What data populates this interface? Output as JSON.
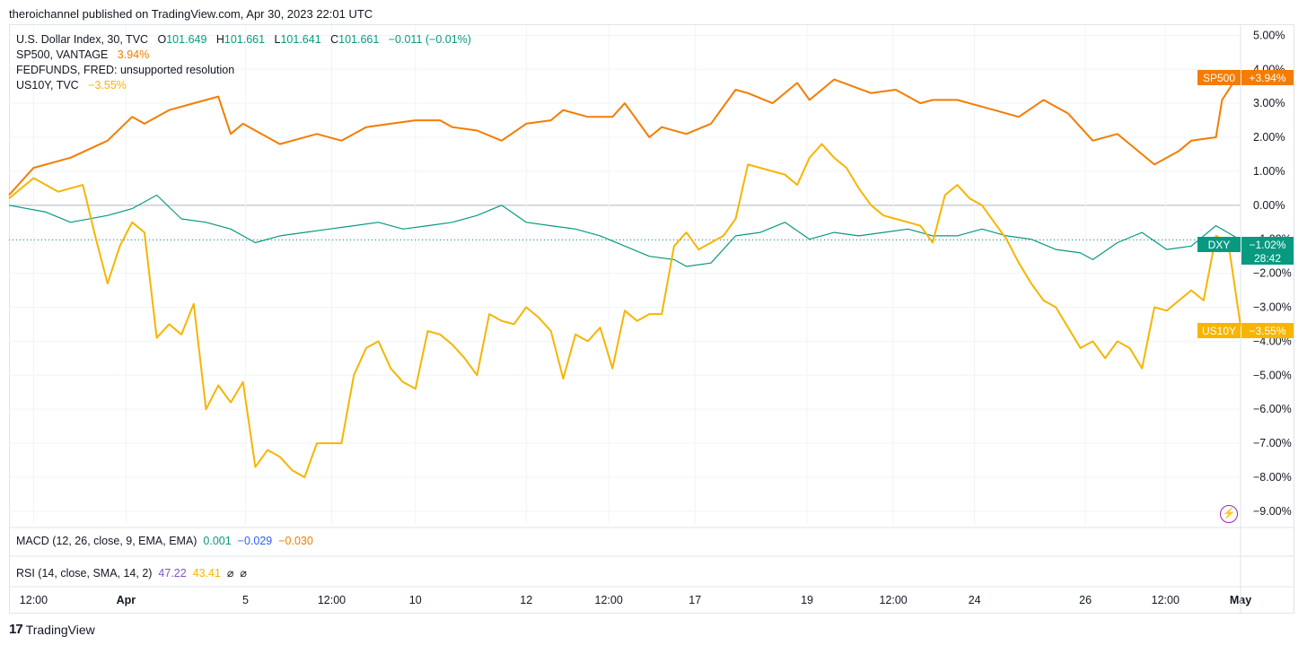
{
  "header": {
    "published": "theroichannel published on TradingView.com, Apr 30, 2023 22:01 UTC"
  },
  "legend": [
    {
      "label": "U.S. Dollar Index, 30, TVC",
      "o_key": "O",
      "o": "101.649",
      "h_key": "H",
      "h": "101.661",
      "l_key": "L",
      "l": "101.641",
      "c_key": "C",
      "c": "101.661",
      "chg": "−0.011 (−0.01%)",
      "color": "#089981"
    },
    {
      "label": "SP500, VANTAGE",
      "value": "3.94%",
      "color": "#f57c00"
    },
    {
      "label": "FEDFUNDS, FRED: unsupported resolution"
    },
    {
      "label": "US10Y, TVC",
      "value": "−3.55%",
      "color": "#f7b500"
    }
  ],
  "macd": {
    "label": "MACD (12, 26, close, 9, EMA, EMA)",
    "v1": "0.001",
    "v2": "−0.029",
    "v3": "−0.030",
    "c1": "#089981",
    "c2": "#2962ff",
    "c3": "#f57c00"
  },
  "rsi": {
    "label": "RSI (14, close, SMA, 14, 2)",
    "v1": "47.22",
    "v2": "43.41",
    "v3": "⌀",
    "v4": "⌀",
    "c1": "#7e57c2",
    "c2": "#f7b500"
  },
  "footer": {
    "brand": "TradingView",
    "logo_text": "17"
  },
  "tags": {
    "sp500": {
      "name": "SP500",
      "value": "+3.94%",
      "color": "#f57c00"
    },
    "dxy": {
      "name": "DXY",
      "value": "−1.02%",
      "countdown": "28:42",
      "color": "#089981"
    },
    "us10y": {
      "name": "US10Y",
      "value": "−3.55%",
      "color": "#f7b500"
    }
  },
  "chart_data": {
    "type": "line",
    "y_unit": "%",
    "ylim": [
      -9.4,
      5.3
    ],
    "y_ticks": [
      "5.00%",
      "4.00%",
      "3.00%",
      "2.00%",
      "1.00%",
      "0.00%",
      "−1.00%",
      "−2.00%",
      "−3.00%",
      "−4.00%",
      "−5.00%",
      "−6.00%",
      "−7.00%",
      "−8.00%",
      "−9.00%"
    ],
    "y_tick_values": [
      5,
      4,
      3,
      2,
      1,
      0,
      -1,
      -2,
      -3,
      -4,
      -5,
      -6,
      -7,
      -8,
      -9
    ],
    "x_ticks": [
      "12:00",
      "Apr",
      "5",
      "12:00",
      "10",
      "12",
      "12:00",
      "17",
      "19",
      "12:00",
      "24",
      "26",
      "12:00",
      "May"
    ],
    "x_tick_pos": [
      0.02,
      0.095,
      0.192,
      0.262,
      0.33,
      0.42,
      0.487,
      0.557,
      0.648,
      0.718,
      0.784,
      0.874,
      0.939,
      1.0
    ],
    "bold_ticks": [
      "Apr",
      "May"
    ],
    "x_range": [
      0,
      1
    ],
    "grid": true,
    "series": [
      {
        "name": "SP500",
        "color": "#f57c00",
        "x": [
          0,
          0.02,
          0.05,
          0.08,
          0.1,
          0.11,
          0.13,
          0.15,
          0.17,
          0.18,
          0.19,
          0.2,
          0.22,
          0.23,
          0.25,
          0.27,
          0.29,
          0.31,
          0.33,
          0.35,
          0.36,
          0.38,
          0.4,
          0.42,
          0.44,
          0.45,
          0.47,
          0.49,
          0.5,
          0.52,
          0.53,
          0.55,
          0.57,
          0.59,
          0.6,
          0.62,
          0.64,
          0.65,
          0.67,
          0.7,
          0.72,
          0.74,
          0.75,
          0.77,
          0.8,
          0.82,
          0.84,
          0.86,
          0.87,
          0.88,
          0.9,
          0.91,
          0.93,
          0.95,
          0.96,
          0.98,
          0.985,
          1.0
        ],
        "y": [
          0.3,
          1.1,
          1.4,
          1.9,
          2.6,
          2.4,
          2.8,
          3.0,
          3.2,
          2.1,
          2.4,
          2.2,
          1.8,
          1.9,
          2.1,
          1.9,
          2.3,
          2.4,
          2.5,
          2.5,
          2.3,
          2.2,
          1.9,
          2.4,
          2.5,
          2.8,
          2.6,
          2.6,
          3.0,
          2.0,
          2.3,
          2.1,
          2.4,
          3.4,
          3.3,
          3.0,
          3.6,
          3.1,
          3.7,
          3.3,
          3.4,
          3.0,
          3.1,
          3.1,
          2.8,
          2.6,
          3.1,
          2.7,
          2.3,
          1.9,
          2.1,
          1.8,
          1.2,
          1.6,
          1.9,
          2.0,
          3.1,
          3.94
        ]
      },
      {
        "name": "DXY",
        "color": "#089981",
        "x": [
          0,
          0.03,
          0.05,
          0.08,
          0.1,
          0.12,
          0.14,
          0.16,
          0.18,
          0.2,
          0.22,
          0.24,
          0.26,
          0.28,
          0.3,
          0.32,
          0.34,
          0.36,
          0.38,
          0.4,
          0.42,
          0.44,
          0.46,
          0.48,
          0.5,
          0.52,
          0.54,
          0.55,
          0.57,
          0.59,
          0.61,
          0.63,
          0.65,
          0.67,
          0.69,
          0.71,
          0.73,
          0.75,
          0.77,
          0.79,
          0.81,
          0.83,
          0.85,
          0.87,
          0.88,
          0.9,
          0.92,
          0.94,
          0.96,
          0.98,
          1.0
        ],
        "y": [
          0.0,
          -0.2,
          -0.5,
          -0.3,
          -0.1,
          0.3,
          -0.4,
          -0.5,
          -0.7,
          -1.1,
          -0.9,
          -0.8,
          -0.7,
          -0.6,
          -0.5,
          -0.7,
          -0.6,
          -0.5,
          -0.3,
          0.0,
          -0.5,
          -0.6,
          -0.7,
          -0.9,
          -1.2,
          -1.5,
          -1.6,
          -1.8,
          -1.7,
          -0.9,
          -0.8,
          -0.5,
          -1.0,
          -0.8,
          -0.9,
          -0.8,
          -0.7,
          -0.9,
          -0.9,
          -0.7,
          -0.9,
          -1.0,
          -1.3,
          -1.4,
          -1.6,
          -1.1,
          -0.8,
          -1.3,
          -1.2,
          -0.6,
          -1.02
        ]
      },
      {
        "name": "US10Y",
        "color": "#f7b500",
        "x": [
          0,
          0.02,
          0.04,
          0.06,
          0.07,
          0.08,
          0.09,
          0.1,
          0.11,
          0.12,
          0.13,
          0.14,
          0.15,
          0.16,
          0.17,
          0.18,
          0.19,
          0.2,
          0.21,
          0.22,
          0.23,
          0.24,
          0.25,
          0.26,
          0.27,
          0.28,
          0.29,
          0.3,
          0.31,
          0.32,
          0.33,
          0.34,
          0.35,
          0.36,
          0.37,
          0.38,
          0.39,
          0.4,
          0.41,
          0.42,
          0.43,
          0.44,
          0.45,
          0.46,
          0.47,
          0.48,
          0.49,
          0.5,
          0.51,
          0.52,
          0.53,
          0.54,
          0.55,
          0.56,
          0.57,
          0.58,
          0.59,
          0.6,
          0.61,
          0.62,
          0.63,
          0.64,
          0.65,
          0.66,
          0.67,
          0.68,
          0.69,
          0.7,
          0.71,
          0.72,
          0.73,
          0.74,
          0.75,
          0.76,
          0.77,
          0.78,
          0.79,
          0.8,
          0.81,
          0.82,
          0.83,
          0.84,
          0.85,
          0.86,
          0.87,
          0.88,
          0.89,
          0.9,
          0.91,
          0.92,
          0.93,
          0.94,
          0.95,
          0.96,
          0.97,
          0.98,
          0.99,
          1.0
        ],
        "y": [
          0.2,
          0.8,
          0.4,
          0.6,
          -0.9,
          -2.3,
          -1.2,
          -0.5,
          -0.8,
          -3.9,
          -3.5,
          -3.8,
          -2.9,
          -6.0,
          -5.3,
          -5.8,
          -5.2,
          -7.7,
          -7.2,
          -7.4,
          -7.8,
          -8.0,
          -7.0,
          -7.0,
          -7.0,
          -5.0,
          -4.2,
          -4.0,
          -4.8,
          -5.2,
          -5.4,
          -3.7,
          -3.8,
          -4.1,
          -4.5,
          -5.0,
          -3.2,
          -3.4,
          -3.5,
          -3.0,
          -3.3,
          -3.7,
          -5.1,
          -3.8,
          -4.0,
          -3.6,
          -4.8,
          -3.1,
          -3.4,
          -3.2,
          -3.2,
          -1.2,
          -0.8,
          -1.3,
          -1.1,
          -0.9,
          -0.4,
          1.2,
          1.1,
          1.0,
          0.9,
          0.6,
          1.4,
          1.8,
          1.4,
          1.1,
          0.5,
          0.0,
          -0.3,
          -0.4,
          -0.5,
          -0.6,
          -1.1,
          0.3,
          0.6,
          0.2,
          0.0,
          -0.5,
          -1.0,
          -1.7,
          -2.3,
          -2.8,
          -3.0,
          -3.6,
          -4.2,
          -4.0,
          -4.5,
          -4.0,
          -4.2,
          -4.8,
          -3.0,
          -3.1,
          -2.8,
          -2.5,
          -2.8,
          -0.9,
          -1.1,
          -3.55
        ]
      }
    ]
  }
}
